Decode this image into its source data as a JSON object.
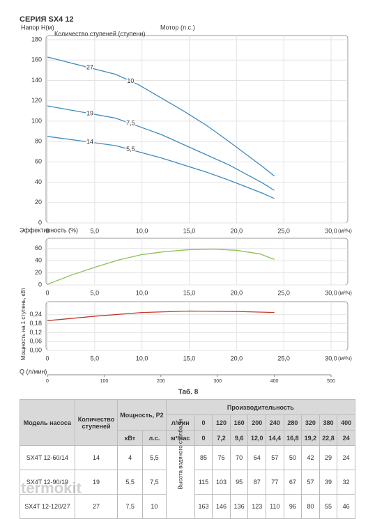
{
  "title": "СЕРИЯ SX4 12",
  "chart_data": [
    {
      "type": "line",
      "ylabel": "Напор H(м)",
      "stages_label": "Количество ступеней (ступени)",
      "motor_label": "Мотор (л.с.)",
      "xlabel": "(м³/ч)",
      "xlim": [
        0,
        30
      ],
      "xticks": [
        0,
        {
          "value": 5,
          "label": "5,0"
        },
        {
          "value": 10,
          "label": "10,0"
        },
        {
          "value": 15,
          "label": "15,0"
        },
        {
          "value": 20,
          "label": "20,0"
        },
        {
          "value": 25,
          "label": "25,0"
        },
        {
          "value": 30,
          "label": "30,0"
        }
      ],
      "ylim": [
        0,
        180
      ],
      "yticks": [
        0,
        20,
        40,
        60,
        80,
        100,
        120,
        140,
        160,
        180
      ],
      "grid": true,
      "series": [
        {
          "name": "27",
          "motor": "10",
          "color": "#3b8bbf",
          "x": [
            0,
            7.2,
            9.6,
            12,
            14.4,
            16.8,
            19.2,
            22.8,
            24
          ],
          "values": [
            163,
            146,
            136,
            123,
            110,
            96,
            80,
            55,
            46
          ]
        },
        {
          "name": "19",
          "motor": "7,5",
          "color": "#3b8bbf",
          "x": [
            0,
            7.2,
            9.6,
            12,
            14.4,
            16.8,
            19.2,
            22.8,
            24
          ],
          "values": [
            115,
            103,
            95,
            87,
            77,
            67,
            57,
            39,
            32
          ]
        },
        {
          "name": "14",
          "motor": "5,5",
          "color": "#3b8bbf",
          "x": [
            0,
            7.2,
            9.6,
            12,
            14.4,
            16.8,
            19.2,
            22.8,
            24
          ],
          "values": [
            85,
            76,
            70,
            64,
            57,
            50,
            42,
            29,
            24
          ]
        }
      ]
    },
    {
      "type": "line",
      "ylabel": "Эффективность (%)",
      "xlabel": "(м³/ч)",
      "xlim": [
        0,
        30
      ],
      "xticks": [
        0,
        {
          "value": 5,
          "label": "5,0"
        },
        {
          "value": 10,
          "label": "10,0"
        },
        {
          "value": 15,
          "label": "15,0"
        },
        {
          "value": 20,
          "label": "20,0"
        },
        {
          "value": 25,
          "label": "25,0"
        },
        {
          "value": 30,
          "label": "30,0"
        }
      ],
      "ylim": [
        0,
        70
      ],
      "yticks": [
        0,
        20,
        40,
        60
      ],
      "grid": true,
      "series": [
        {
          "color": "#8cc152",
          "x": [
            0,
            2.5,
            5,
            7.5,
            10,
            12.5,
            15,
            17.5,
            20,
            22.5,
            24
          ],
          "values": [
            1,
            16,
            29,
            41,
            50,
            55,
            58,
            59,
            57,
            51,
            42
          ]
        }
      ]
    },
    {
      "type": "line",
      "ylabel": "Мощность на 1 ступень, кВт",
      "xlabel": "(м³/ч)",
      "x2label": "Q (л/мин)",
      "xlim": [
        0,
        30
      ],
      "xticks": [
        0,
        {
          "value": 5,
          "label": "5,0"
        },
        {
          "value": 10,
          "label": "10,0"
        },
        {
          "value": 15,
          "label": "15,0"
        },
        {
          "value": 20,
          "label": "20,0"
        },
        {
          "value": 25,
          "label": "25,0"
        },
        {
          "value": 30,
          "label": "30,0"
        }
      ],
      "x2lim": [
        0,
        500
      ],
      "x2ticks": [
        0,
        100,
        200,
        300,
        400,
        500
      ],
      "ylim": [
        0,
        0.3
      ],
      "yticks": [
        {
          "value": 0,
          "label": "0,00"
        },
        {
          "value": 0.06,
          "label": "0,06"
        },
        {
          "value": 0.12,
          "label": "0,12"
        },
        {
          "value": 0.18,
          "label": "0,18"
        },
        {
          "value": 0.24,
          "label": "0,24"
        }
      ],
      "grid": true,
      "series": [
        {
          "color": "#c0392b",
          "x": [
            0,
            5,
            10,
            15,
            20,
            24
          ],
          "values": [
            0.2,
            0.23,
            0.255,
            0.265,
            0.262,
            0.255
          ]
        }
      ]
    }
  ],
  "table": {
    "caption": "Таб. 8",
    "headers": {
      "model": "Модель насоса",
      "stages": "Количество ступеней",
      "power": "Мощность, P2",
      "kw": "кВт",
      "hp": "л.с.",
      "flow": "Производительность",
      "lmin": "л/мин",
      "m3h": "м³/час",
      "head": "Высота водяного столба, м"
    },
    "lmin": [
      "0",
      "120",
      "160",
      "200",
      "240",
      "280",
      "320",
      "380",
      "400"
    ],
    "m3h": [
      "0",
      "7,2",
      "9,6",
      "12,0",
      "14,4",
      "16,8",
      "19,2",
      "22,8",
      "24"
    ],
    "rows": [
      [
        "SX4T 12-60/14",
        "14",
        "4",
        "5,5",
        "85",
        "76",
        "70",
        "64",
        "57",
        "50",
        "42",
        "29",
        "24"
      ],
      [
        "SX4T 12-90/19",
        "19",
        "5,5",
        "7,5",
        "115",
        "103",
        "95",
        "87",
        "77",
        "67",
        "57",
        "39",
        "32"
      ],
      [
        "SX4T 12-120/27",
        "27",
        "7,5",
        "10",
        "163",
        "146",
        "136",
        "123",
        "110",
        "96",
        "80",
        "55",
        "46"
      ]
    ]
  },
  "watermark": "termokit"
}
